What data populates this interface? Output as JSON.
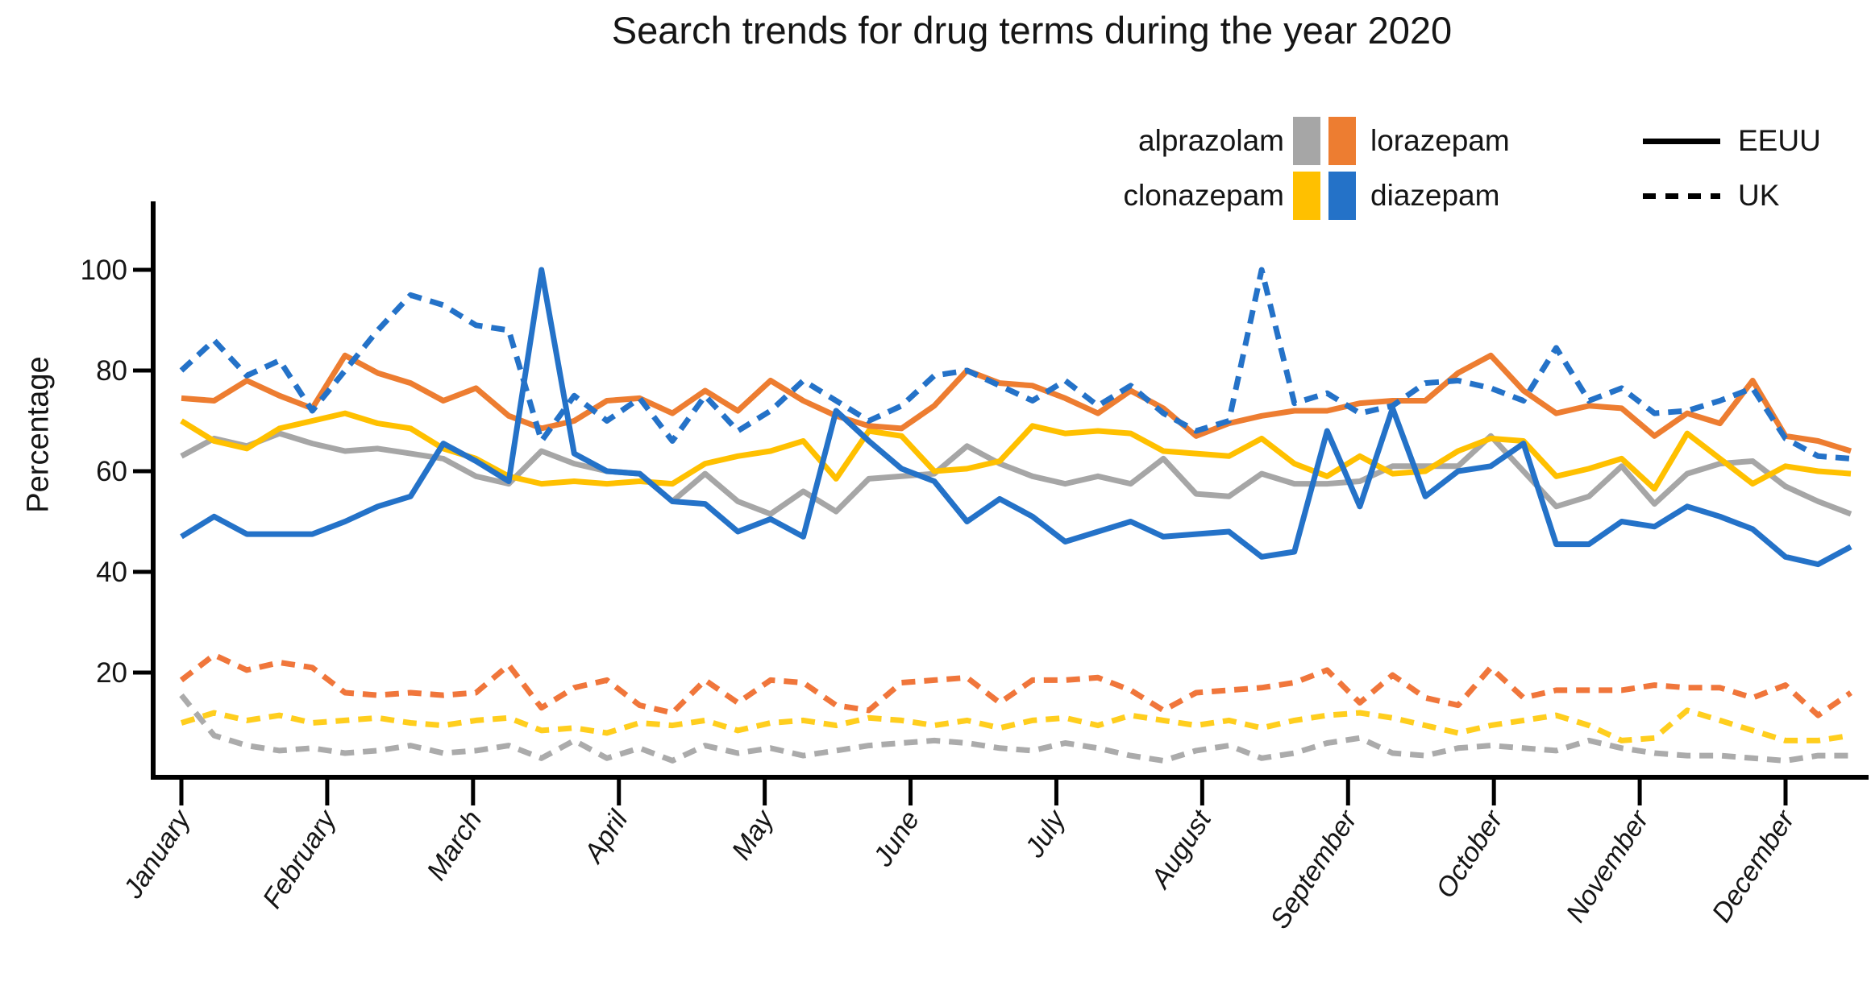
{
  "title": "Search trends for drug terms during the year 2020",
  "chart_data": {
    "type": "line",
    "title": "Search trends for drug terms during the year 2020",
    "xlabel": "",
    "ylabel": "Percentage",
    "ylim": [
      0,
      112
    ],
    "yticks": [
      20,
      40,
      60,
      80,
      100
    ],
    "x_unit": "weeks of 2020 (52 points per series)",
    "categories_months": [
      "January",
      "February",
      "March",
      "April",
      "May",
      "June",
      "July",
      "August",
      "September",
      "October",
      "November",
      "December"
    ],
    "grid": "off",
    "legend_position": "top-right",
    "legend": {
      "drugs": [
        {
          "name": "alprazolam",
          "color": "#A6A6A6"
        },
        {
          "name": "lorazepam",
          "color": "#ED7D31"
        },
        {
          "name": "clonazepam",
          "color": "#FFC000"
        },
        {
          "name": "diazepam",
          "color": "#2472C8"
        }
      ],
      "styles": [
        {
          "name": "EEUU",
          "dash": "solid"
        },
        {
          "name": "UK",
          "dash": "dashed"
        }
      ]
    },
    "series": [
      {
        "name": "alprazolam EEUU",
        "drug": "alprazolam",
        "country": "EEUU",
        "color": "#A6A6A6",
        "dash": "solid",
        "values": [
          63,
          66.5,
          65,
          67.5,
          65.5,
          64,
          64.5,
          63.5,
          62.5,
          59,
          57.5,
          64,
          61.5,
          60,
          59.5,
          54,
          59.5,
          54,
          51.5,
          56,
          52,
          58.5,
          59,
          59.5,
          65,
          61.5,
          59,
          57.5,
          59,
          57.5,
          62.5,
          55.5,
          55,
          59.5,
          57.5,
          57.5,
          58,
          61,
          61,
          61,
          67,
          60,
          53,
          55,
          61,
          53.5,
          59.5,
          61.5,
          62,
          57,
          54,
          51.5
        ]
      },
      {
        "name": "clonazepam EEUU",
        "drug": "clonazepam",
        "country": "EEUU",
        "color": "#FFC000",
        "dash": "solid",
        "values": [
          70,
          66,
          64.5,
          68.5,
          70,
          71.5,
          69.5,
          68.5,
          64.5,
          62.5,
          59,
          57.5,
          58,
          57.5,
          58,
          57.5,
          61.5,
          63,
          64,
          66,
          58.5,
          68,
          67,
          60,
          60.5,
          62,
          69,
          67.5,
          68,
          67.5,
          64,
          63.5,
          63,
          66.5,
          61.5,
          59,
          63,
          59.5,
          60,
          64,
          66.5,
          66,
          59,
          60.5,
          62.5,
          56.5,
          67.5,
          62.5,
          57.5,
          61,
          60,
          59.5
        ]
      },
      {
        "name": "lorazepam EEUU",
        "drug": "lorazepam",
        "country": "EEUU",
        "color": "#ED7D31",
        "dash": "solid",
        "values": [
          74.5,
          74,
          78,
          75,
          72.5,
          83,
          79.5,
          77.5,
          74,
          76.5,
          71,
          68.5,
          70,
          74,
          74.5,
          71.5,
          76,
          72,
          78,
          74,
          71,
          69,
          68.5,
          73,
          80,
          77.5,
          77,
          74.5,
          71.5,
          76,
          72.5,
          67,
          69.5,
          71,
          72,
          72,
          73.5,
          74,
          74,
          79.5,
          83,
          76,
          71.5,
          73,
          72.5,
          67,
          71.5,
          69.5,
          78,
          67,
          66,
          64
        ]
      },
      {
        "name": "diazepam EEUU",
        "drug": "diazepam",
        "country": "EEUU",
        "color": "#2472C8",
        "dash": "solid",
        "values": [
          47,
          51,
          47.5,
          47.5,
          47.5,
          50,
          53,
          55,
          65.5,
          62,
          58,
          100,
          63.5,
          60,
          59.5,
          54,
          53.5,
          48,
          50.5,
          47,
          72,
          66,
          60.5,
          58,
          50,
          54.5,
          51,
          46,
          48,
          50,
          47,
          47.5,
          48,
          43,
          44,
          68,
          53,
          72.5,
          55,
          60,
          61,
          65.5,
          45.5,
          45.5,
          50,
          49,
          53,
          51,
          48.5,
          43,
          41.5,
          45
        ]
      },
      {
        "name": "alprazolam UK",
        "drug": "alprazolam",
        "country": "UK",
        "color": "#ABABAB",
        "dash": "dashed",
        "values": [
          15.5,
          7.5,
          5.5,
          4.5,
          5,
          4,
          4.5,
          5.5,
          4,
          4.5,
          5.5,
          3,
          6.5,
          3,
          5,
          2.5,
          5.5,
          4,
          5,
          3.5,
          4.5,
          5.5,
          6,
          6.5,
          6,
          5,
          4.5,
          6,
          5,
          3.5,
          2.5,
          4.5,
          5.5,
          3,
          4,
          6,
          7,
          4,
          3.5,
          5,
          5.5,
          5,
          4.5,
          6.5,
          5,
          4,
          3.5,
          3.5,
          3,
          2.5,
          3.5,
          3.5
        ]
      },
      {
        "name": "clonazepam UK",
        "drug": "clonazepam",
        "country": "UK",
        "color": "#FFCE1E",
        "dash": "dashed",
        "values": [
          10,
          12,
          10.5,
          11.5,
          10,
          10.5,
          11,
          10,
          9.5,
          10.5,
          11,
          8.5,
          9,
          8,
          10,
          9.5,
          10.5,
          8.5,
          10,
          10.5,
          9.5,
          11,
          10.5,
          9.5,
          10.5,
          9,
          10.5,
          11,
          9.5,
          11.5,
          10.5,
          9.5,
          10.5,
          9,
          10.5,
          11.5,
          12,
          11,
          9.5,
          8,
          9.5,
          10.5,
          11.5,
          9.5,
          6.5,
          7,
          12.5,
          10.5,
          8.5,
          6.5,
          6.5,
          7.5
        ]
      },
      {
        "name": "lorazepam UK",
        "drug": "lorazepam",
        "country": "UK",
        "color": "#F0763B",
        "dash": "dashed",
        "values": [
          18.5,
          23.5,
          20.5,
          22,
          21,
          16,
          15.5,
          16,
          15.5,
          16,
          21.5,
          13,
          17,
          18.5,
          13.5,
          12,
          18.5,
          14,
          18.5,
          18,
          13.5,
          12.5,
          18,
          18.5,
          19,
          14,
          18.5,
          18.5,
          19,
          16.5,
          12.5,
          16,
          16.5,
          17,
          18,
          20.5,
          14,
          19.5,
          15,
          13.5,
          21,
          15,
          16.5,
          16.5,
          16.5,
          17.5,
          17,
          17,
          15,
          17.5,
          11.5,
          16
        ]
      },
      {
        "name": "diazepam UK",
        "drug": "diazepam",
        "country": "UK",
        "color": "#2472C8",
        "dash": "dashed",
        "values": [
          80,
          86,
          79,
          82,
          72,
          80,
          88,
          95,
          93,
          89,
          88,
          66,
          75,
          70,
          74.5,
          66,
          75,
          68,
          72,
          78,
          74,
          70,
          73,
          79,
          80,
          77,
          74,
          78,
          73,
          77,
          71.5,
          68,
          70,
          100,
          73.5,
          75.5,
          71.5,
          73,
          77.5,
          78,
          76.5,
          74,
          84.5,
          74,
          76.5,
          71.5,
          72,
          74,
          76.5,
          66.5,
          63,
          62.5
        ]
      }
    ]
  }
}
